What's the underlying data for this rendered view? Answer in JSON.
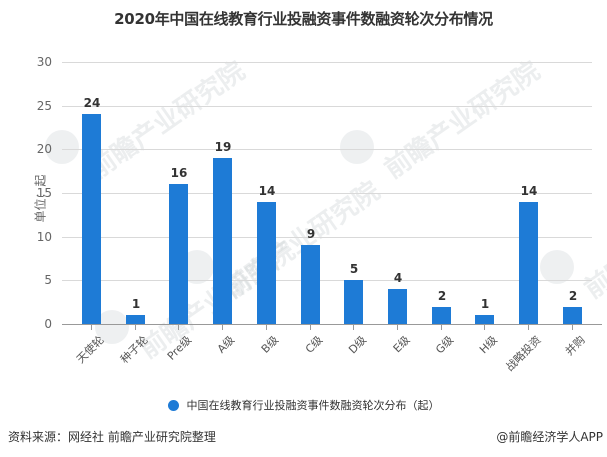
{
  "title": "2020年中国在线教育行业投融资事件数融资轮次分布情况",
  "y_axis_label": "单位：起",
  "y_ticks": [
    "0",
    "5",
    "10",
    "15",
    "20",
    "25",
    "30"
  ],
  "legend": {
    "label": "中国在线教育行业投融资事件数融资轮次分布（起）",
    "color": "#1e7bd6"
  },
  "footer": {
    "source": "资料来源：网经社 前瞻产业研究院整理",
    "credit": "@前瞻经济学人APP"
  },
  "watermark": {
    "text": "前瞻产业研究院"
  },
  "bars": [
    {
      "category": "天使轮",
      "value": "24"
    },
    {
      "category": "种子轮",
      "value": "1"
    },
    {
      "category": "Pre级",
      "value": "16"
    },
    {
      "category": "A级",
      "value": "19"
    },
    {
      "category": "B级",
      "value": "14"
    },
    {
      "category": "C级",
      "value": "9"
    },
    {
      "category": "D级",
      "value": "5"
    },
    {
      "category": "E级",
      "value": "4"
    },
    {
      "category": "G级",
      "value": "2"
    },
    {
      "category": "H级",
      "value": "1"
    },
    {
      "category": "战略投资",
      "value": "14"
    },
    {
      "category": "并购",
      "value": "2"
    }
  ],
  "chart_data": {
    "type": "bar",
    "title": "2020年中国在线教育行业投融资事件数融资轮次分布情况",
    "categories": [
      "天使轮",
      "种子轮",
      "Pre级",
      "A级",
      "B级",
      "C级",
      "D级",
      "E级",
      "G级",
      "H级",
      "战略投资",
      "并购"
    ],
    "series": [
      {
        "name": "中国在线教育行业投融资事件数融资轮次分布（起）",
        "values": [
          24,
          1,
          16,
          19,
          14,
          9,
          5,
          4,
          2,
          1,
          14,
          2
        ],
        "color": "#1e7bd6"
      }
    ],
    "xlabel": "",
    "ylabel": "单位：起",
    "ylim": [
      0,
      30
    ],
    "yticks": [
      0,
      5,
      10,
      15,
      20,
      25,
      30
    ],
    "grid": true,
    "legend_position": "bottom",
    "data_labels": true
  }
}
